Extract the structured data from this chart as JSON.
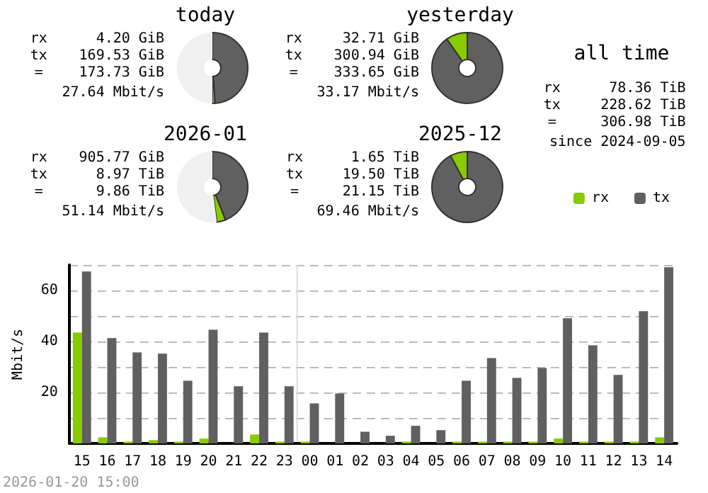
{
  "chart_data": [
    {
      "type": "donut",
      "title": "today",
      "categories": [
        null,
        null,
        null
      ],
      "values": [
        48.8,
        1.2,
        50
      ],
      "colors": [
        "#606060",
        "#88cc00",
        "#f0f0f0"
      ],
      "annotations": [
        "rx",
        "4.20 GiB",
        "tx",
        "169.53 GiB",
        "=",
        "173.73 GiB",
        "27.64 Mbit/s"
      ]
    },
    {
      "type": "donut",
      "title": "yesterday",
      "categories": [
        null,
        null
      ],
      "values": [
        90.2,
        9.8
      ],
      "colors": [
        "#606060",
        "#88cc00"
      ],
      "annotations": [
        "rx",
        "32.71 GiB",
        "tx",
        "300.94 GiB",
        "=",
        "333.65 GiB",
        "33.17 Mbit/s"
      ]
    },
    {
      "type": "donut",
      "title": "2026-01",
      "categories": [
        null,
        null,
        null
      ],
      "values": [
        44,
        4,
        52
      ],
      "colors": [
        "#606060",
        "#88cc00",
        "#f0f0f0"
      ],
      "annotations": [
        "rx",
        "905.77 GiB",
        "tx",
        "8.97 TiB",
        "=",
        "9.86 TiB",
        "51.14 Mbit/s"
      ]
    },
    {
      "type": "donut",
      "title": "2025-12",
      "categories": [
        null,
        null
      ],
      "values": [
        92.2,
        7.8
      ],
      "colors": [
        "#606060",
        "#88cc00"
      ],
      "annotations": [
        "rx",
        "1.65 TiB",
        "tx",
        "19.50 TiB",
        "=",
        "21.15 TiB",
        "69.46 Mbit/s"
      ]
    },
    {
      "type": "other",
      "title": "all time",
      "annotations": [
        "rx",
        "78.36 TiB",
        "tx",
        "228.62 TiB",
        "=",
        "306.98 TiB",
        "since 2024-09-05"
      ]
    },
    {
      "type": "bar",
      "categories": [
        "15",
        "16",
        "17",
        "18",
        "19",
        "20",
        "21",
        "22",
        "23",
        "00",
        "01",
        "02",
        "03",
        "04",
        "05",
        "06",
        "07",
        "08",
        "09",
        "10",
        "11",
        "12",
        "13",
        "14"
      ],
      "series": [
        {
          "name": "rx",
          "color": "#88cc00",
          "values": [
            43.5,
            2.4,
            0.7,
            1.3,
            0.7,
            1.9,
            0,
            3.5,
            0.7,
            0.7,
            0,
            0,
            0,
            0.7,
            0,
            0.7,
            0.7,
            0.7,
            0.7,
            1.9,
            0.7,
            0.7,
            0.7,
            2.4
          ]
        },
        {
          "name": "tx",
          "color": "#606060",
          "values": [
            67.4,
            41.3,
            35.7,
            35.2,
            24.6,
            44.6,
            22.4,
            43.5,
            22.4,
            15.7,
            19.6,
            4.6,
            3.0,
            6.9,
            5.2,
            24.6,
            33.5,
            25.7,
            29.6,
            49.1,
            38.5,
            26.9,
            51.9,
            69.1
          ]
        }
      ],
      "ylabel": "Mbit/s",
      "ylim": [
        0,
        70
      ],
      "yticks": [
        {
          "value": 0,
          "label": null
        },
        {
          "value": 10,
          "label": null
        },
        20,
        {
          "value": 30,
          "label": null
        },
        40,
        {
          "value": 50,
          "label": null
        },
        60,
        {
          "value": 70,
          "label": null
        }
      ],
      "grid": "y",
      "legend": "top right",
      "ref_lines": [
        {
          "axis": "x",
          "value": "00",
          "color": "#dddddd"
        }
      ],
      "annotations": [
        "2026-01-20 15:00"
      ]
    }
  ]
}
